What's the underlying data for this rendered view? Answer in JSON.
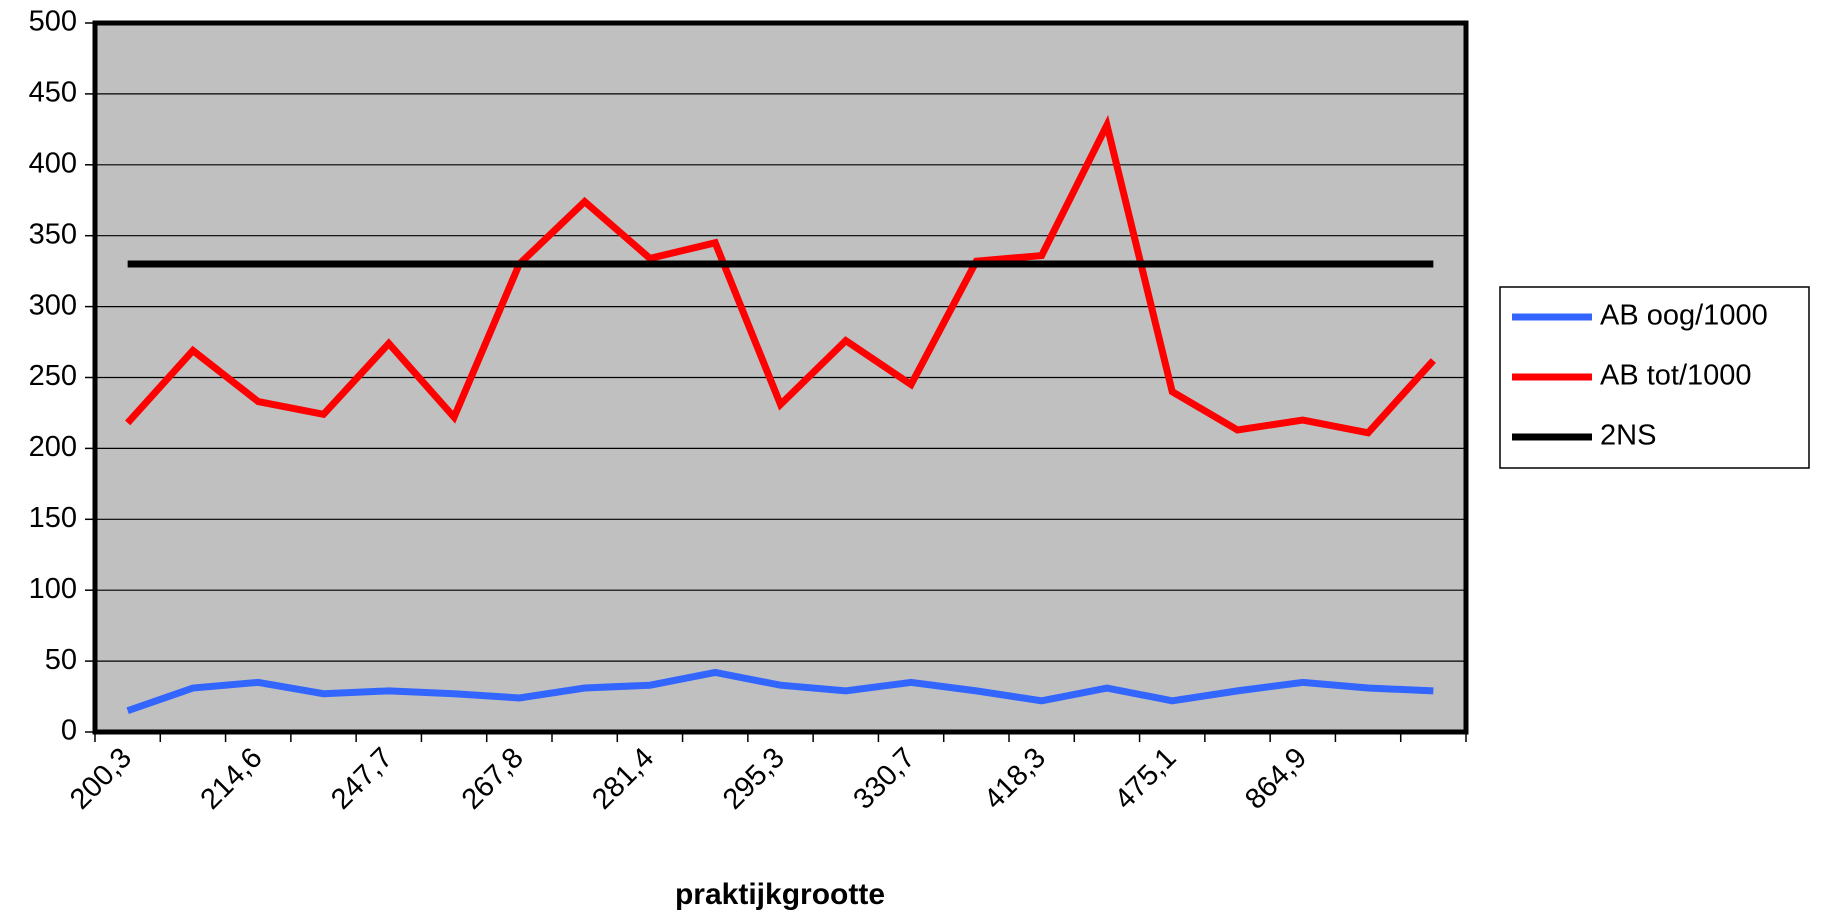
{
  "chart_data": {
    "type": "line",
    "x_label": "praktijkgrootte",
    "categories": [
      "200,3",
      null,
      "214,6",
      null,
      "247,7",
      null,
      "267,8",
      null,
      "281,4",
      null,
      "295,3",
      null,
      "330,7",
      null,
      "418,3",
      null,
      "475,1",
      null,
      "864,9",
      null,
      null
    ],
    "series": [
      {
        "name": "AB oog/1000",
        "color": "#3366ff",
        "values": [
          15,
          31,
          35,
          27,
          29,
          27,
          24,
          31,
          33,
          42,
          33,
          29,
          35,
          29,
          22,
          31,
          22,
          29,
          35,
          31,
          29
        ]
      },
      {
        "name": "AB tot/1000",
        "color": "#ff0000",
        "values": [
          218,
          269,
          233,
          224,
          274,
          222,
          330,
          374,
          334,
          345,
          231,
          276,
          245,
          332,
          336,
          428,
          240,
          213,
          220,
          211,
          262
        ]
      },
      {
        "name": "2NS",
        "color": "#000000",
        "values": [
          330,
          330,
          330,
          330,
          330,
          330,
          330,
          330,
          330,
          330,
          330,
          330,
          330,
          330,
          330,
          330,
          330,
          330,
          330,
          330,
          330
        ]
      }
    ],
    "ylim": [
      0,
      500
    ],
    "yticks": [
      0,
      50,
      100,
      150,
      200,
      250,
      300,
      350,
      400,
      450,
      500
    ],
    "grid": true,
    "legend": "right",
    "background": "#c0c0c0"
  }
}
